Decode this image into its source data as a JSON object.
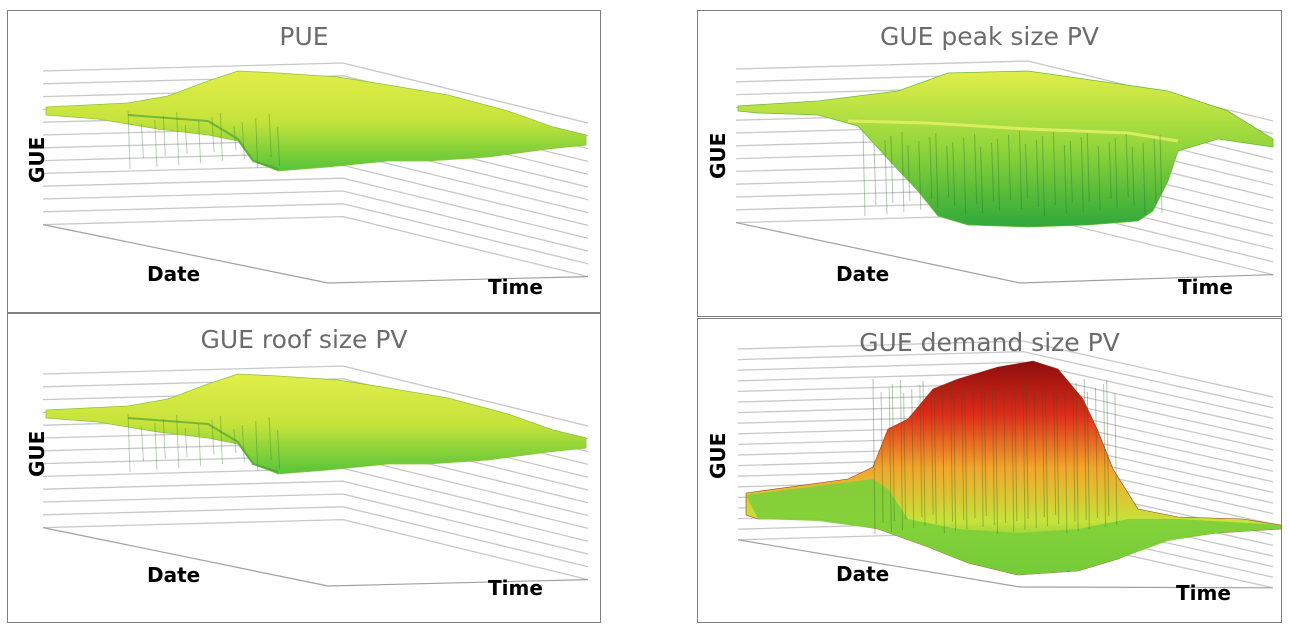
{
  "chart_data": [
    {
      "type": "surface",
      "title": "PUE",
      "xlabel": "Date",
      "ylabel": "Time",
      "zlabel": "GUE",
      "grid": true,
      "colors": [
        "#55c43a",
        "#c6e33b",
        "#e2ee4a"
      ],
      "shape": "flat plateau",
      "relative_level": {
        "plateau": 0.82,
        "base": 0.8
      }
    },
    {
      "type": "surface",
      "title": "GUE peak size PV",
      "xlabel": "Date",
      "ylabel": "Time",
      "zlabel": "GUE",
      "grid": true,
      "colors": [
        "#2fa83a",
        "#8fd43b",
        "#e2ee4a"
      ],
      "shape": "valley",
      "relative_level": {
        "plateau": 0.82,
        "trough": 0.15
      }
    },
    {
      "type": "surface",
      "title": "GUE roof size PV",
      "xlabel": "Date",
      "ylabel": "Time",
      "zlabel": "GUE",
      "grid": true,
      "colors": [
        "#55c43a",
        "#c6e33b",
        "#e2ee4a"
      ],
      "shape": "flat plateau",
      "relative_level": {
        "plateau": 0.82,
        "base": 0.78
      }
    },
    {
      "type": "surface",
      "title": "GUE demand size PV",
      "xlabel": "Date",
      "ylabel": "Time",
      "zlabel": "GUE",
      "grid": true,
      "colors": [
        "#2fa83a",
        "#c6e33b",
        "#f2a52c",
        "#e02b1a",
        "#8b0d0d"
      ],
      "shape": "peak",
      "relative_level": {
        "plateau": 0.3,
        "peak": 1.0
      }
    }
  ]
}
